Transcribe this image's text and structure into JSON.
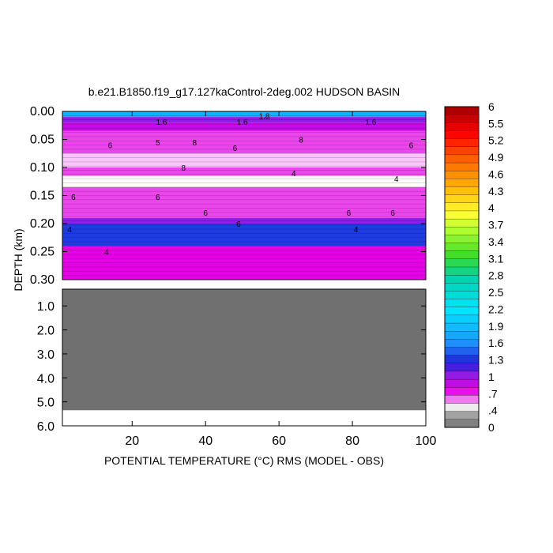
{
  "chart_data": {
    "type": "heatmap",
    "title": "b.e21.B1850.f19_g17.127kaControl-2deg.002 HUDSON BASIN",
    "xlabel": "POTENTIAL TEMPERATURE (°C) RMS (MODEL - OBS)",
    "ylabel": "DEPTH (km)",
    "xlim": [
      1,
      100
    ],
    "x_ticks": [
      20,
      40,
      60,
      80,
      100
    ],
    "x_tick_labels": [
      "20",
      "40",
      "60",
      "80",
      "100"
    ],
    "upper_panel": {
      "ylim": [
        0.0,
        0.3
      ],
      "y_ticks": [
        0.0,
        0.05,
        0.1,
        0.15,
        0.2,
        0.25,
        0.3
      ],
      "y_tick_labels": [
        "0.00",
        "0.05",
        "0.10",
        "0.15",
        "0.20",
        "0.25",
        "0.30"
      ],
      "depth_bands": [
        {
          "top": 0.0,
          "bottom": 0.01,
          "value": 1.8
        },
        {
          "top": 0.01,
          "bottom": 0.02,
          "value": 1.0
        },
        {
          "top": 0.02,
          "bottom": 0.035,
          "value": 0.8
        },
        {
          "top": 0.035,
          "bottom": 0.075,
          "value": 0.6
        },
        {
          "top": 0.075,
          "bottom": 0.1,
          "value": 0.45
        },
        {
          "top": 0.1,
          "bottom": 0.115,
          "value": 0.6
        },
        {
          "top": 0.115,
          "bottom": 0.135,
          "value": 0.4
        },
        {
          "top": 0.135,
          "bottom": 0.19,
          "value": 0.6
        },
        {
          "top": 0.19,
          "bottom": 0.2,
          "value": 1.0
        },
        {
          "top": 0.2,
          "bottom": 0.24,
          "value": 1.3
        },
        {
          "top": 0.24,
          "bottom": 0.3,
          "value": 0.7
        }
      ],
      "contour_labels": [
        {
          "x": 28,
          "depth": 0.018,
          "text": "1.6"
        },
        {
          "x": 50,
          "depth": 0.018,
          "text": "1.6"
        },
        {
          "x": 56,
          "depth": 0.008,
          "text": "1.8"
        },
        {
          "x": 85,
          "depth": 0.018,
          "text": "1.6"
        },
        {
          "x": 14,
          "depth": 0.06,
          "text": "6"
        },
        {
          "x": 27,
          "depth": 0.055,
          "text": "5"
        },
        {
          "x": 37,
          "depth": 0.055,
          "text": "8"
        },
        {
          "x": 48,
          "depth": 0.065,
          "text": "6"
        },
        {
          "x": 66,
          "depth": 0.05,
          "text": "8"
        },
        {
          "x": 96,
          "depth": 0.06,
          "text": "6"
        },
        {
          "x": 34,
          "depth": 0.1,
          "text": "8"
        },
        {
          "x": 92,
          "depth": 0.12,
          "text": "4"
        },
        {
          "x": 4,
          "depth": 0.152,
          "text": "6"
        },
        {
          "x": 27,
          "depth": 0.152,
          "text": "6"
        },
        {
          "x": 40,
          "depth": 0.18,
          "text": "6"
        },
        {
          "x": 64,
          "depth": 0.11,
          "text": "4"
        },
        {
          "x": 79,
          "depth": 0.18,
          "text": "6"
        },
        {
          "x": 91,
          "depth": 0.18,
          "text": "6"
        },
        {
          "x": 3,
          "depth": 0.21,
          "text": "4"
        },
        {
          "x": 13,
          "depth": 0.25,
          "text": "4"
        },
        {
          "x": 49,
          "depth": 0.2,
          "text": "6"
        },
        {
          "x": 81,
          "depth": 0.21,
          "text": "4"
        }
      ]
    },
    "lower_panel": {
      "ylim": [
        0.3,
        6.0
      ],
      "y_ticks": [
        1.0,
        2.0,
        3.0,
        4.0,
        5.0,
        6.0
      ],
      "y_tick_labels": [
        "1.0",
        "2.0",
        "3.0",
        "4.0",
        "5.0",
        "6.0"
      ],
      "masked_to_depth": 5.35
    },
    "colorbar": {
      "tick_labels": [
        "6",
        "5.5",
        "5.2",
        "4.9",
        "4.6",
        "4.3",
        "4",
        "3.7",
        "3.4",
        "3.1",
        "2.8",
        "2.5",
        "2.2",
        "1.9",
        "1.6",
        "1.3",
        "1",
        ".7",
        ".4",
        "0"
      ],
      "stops": [
        {
          "value": 0.0,
          "color": "#6e6e6e"
        },
        {
          "value": 0.3,
          "color": "#b4b4b4"
        },
        {
          "value": 0.4,
          "color": "#ffffff"
        },
        {
          "value": 0.5,
          "color": "#f08cf0"
        },
        {
          "value": 0.7,
          "color": "#e600e6"
        },
        {
          "value": 1.0,
          "color": "#8c1ee6"
        },
        {
          "value": 1.2,
          "color": "#1e1ed7"
        },
        {
          "value": 1.6,
          "color": "#1e96ff"
        },
        {
          "value": 2.2,
          "color": "#00e6ff"
        },
        {
          "value": 2.8,
          "color": "#00d2aa"
        },
        {
          "value": 3.2,
          "color": "#3cdc28"
        },
        {
          "value": 3.7,
          "color": "#b4ff32"
        },
        {
          "value": 4.0,
          "color": "#ffff32"
        },
        {
          "value": 4.5,
          "color": "#ffb400"
        },
        {
          "value": 5.0,
          "color": "#ff6400"
        },
        {
          "value": 5.5,
          "color": "#ff0000"
        },
        {
          "value": 6.0,
          "color": "#a00000"
        }
      ]
    },
    "mask_color": "#707070"
  }
}
